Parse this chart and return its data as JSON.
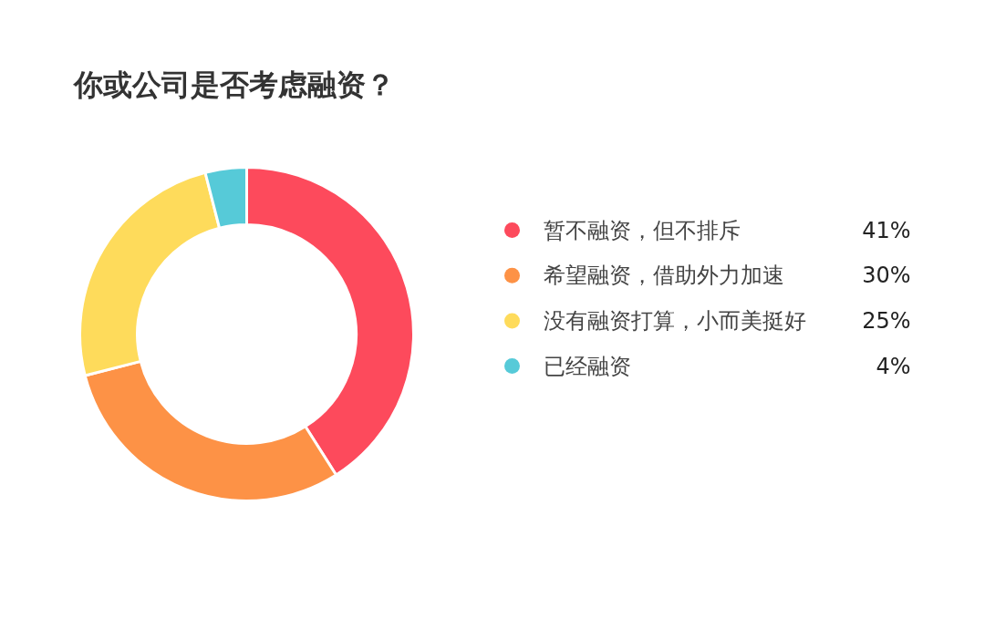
{
  "chart_data": {
    "type": "donut",
    "title": "你或公司是否考虑融资？",
    "categories": [
      "暂不融资，但不排斥",
      "希望融资，借助外力加速",
      "没有融资打算，小而美挺好",
      "已经融资"
    ],
    "values": [
      41,
      30,
      25,
      4
    ],
    "value_labels": [
      "41%",
      "30%",
      "25%",
      "4%"
    ],
    "colors": [
      "#fd4a5c",
      "#fd9246",
      "#fedb5b",
      "#56cad8"
    ],
    "legend": "right"
  }
}
